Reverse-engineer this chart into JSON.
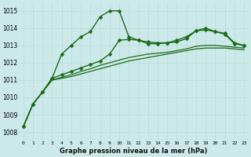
{
  "title": "Graphe pression niveau de la mer (hPa)",
  "x_ticks": [
    0,
    1,
    2,
    3,
    4,
    5,
    6,
    7,
    8,
    9,
    10,
    11,
    12,
    13,
    14,
    15,
    16,
    17,
    18,
    19,
    20,
    21,
    22,
    23
  ],
  "ylim": [
    1007.5,
    1015.5
  ],
  "yticks": [
    1008,
    1009,
    1010,
    1011,
    1012,
    1013,
    1014,
    1015
  ],
  "bg_color": "#cce9e9",
  "grid_color": "#bbdddd",
  "line_color": "#1a6b1a",
  "figsize": [
    3.2,
    2.0
  ],
  "dpi": 100,
  "series": [
    {
      "x": [
        0,
        1,
        2,
        3,
        4,
        5,
        6,
        7,
        8,
        9,
        10,
        11,
        12,
        13,
        14,
        15,
        16,
        17,
        18,
        19,
        20,
        21,
        22,
        23
      ],
      "y": [
        1008.3,
        1009.6,
        1010.3,
        1011.1,
        1012.5,
        1013.0,
        1013.5,
        1013.8,
        1014.65,
        1015.0,
        1015.0,
        1013.5,
        1013.3,
        1013.1,
        1013.1,
        1013.15,
        1013.2,
        1013.4,
        1013.85,
        1014.0,
        1013.8,
        1013.65,
        1013.1,
        1013.0
      ],
      "marker": "D",
      "markersize": 2.5,
      "linewidth": 1.0,
      "linestyle": "-"
    },
    {
      "x": [
        0,
        1,
        2,
        3,
        4,
        5,
        6,
        7,
        8,
        9,
        10,
        11,
        12,
        13,
        14,
        15,
        16,
        17,
        18,
        19,
        20,
        21,
        22,
        23
      ],
      "y": [
        1008.3,
        1009.6,
        1010.3,
        1011.1,
        1011.3,
        1011.5,
        1011.7,
        1011.9,
        1012.1,
        1012.5,
        1013.3,
        1013.35,
        1013.3,
        1013.2,
        1013.15,
        1013.15,
        1013.3,
        1013.5,
        1013.85,
        1013.9,
        1013.8,
        1013.7,
        1013.15,
        1013.0
      ],
      "marker": "D",
      "markersize": 2.5,
      "linewidth": 1.0,
      "linestyle": "-"
    },
    {
      "x": [
        0,
        1,
        2,
        3,
        4,
        5,
        6,
        7,
        8,
        9,
        10,
        11,
        12,
        13,
        14,
        15,
        16,
        17,
        18,
        19,
        20,
        21,
        22,
        23
      ],
      "y": [
        1008.3,
        1009.6,
        1010.3,
        1011.0,
        1011.1,
        1011.2,
        1011.35,
        1011.5,
        1011.65,
        1011.8,
        1011.95,
        1012.1,
        1012.2,
        1012.3,
        1012.4,
        1012.5,
        1012.6,
        1012.7,
        1012.8,
        1012.85,
        1012.85,
        1012.85,
        1012.8,
        1012.75
      ],
      "marker": null,
      "markersize": 0,
      "linewidth": 0.9,
      "linestyle": "-"
    },
    {
      "x": [
        0,
        1,
        2,
        3,
        4,
        5,
        6,
        7,
        8,
        9,
        10,
        11,
        12,
        13,
        14,
        15,
        16,
        17,
        18,
        19,
        20,
        21,
        22,
        23
      ],
      "y": [
        1008.3,
        1009.6,
        1010.3,
        1011.0,
        1011.15,
        1011.3,
        1011.5,
        1011.65,
        1011.85,
        1012.0,
        1012.15,
        1012.3,
        1012.4,
        1012.5,
        1012.55,
        1012.6,
        1012.7,
        1012.8,
        1012.95,
        1013.0,
        1013.0,
        1012.95,
        1012.9,
        1012.85
      ],
      "marker": null,
      "markersize": 0,
      "linewidth": 0.9,
      "linestyle": "-"
    }
  ]
}
